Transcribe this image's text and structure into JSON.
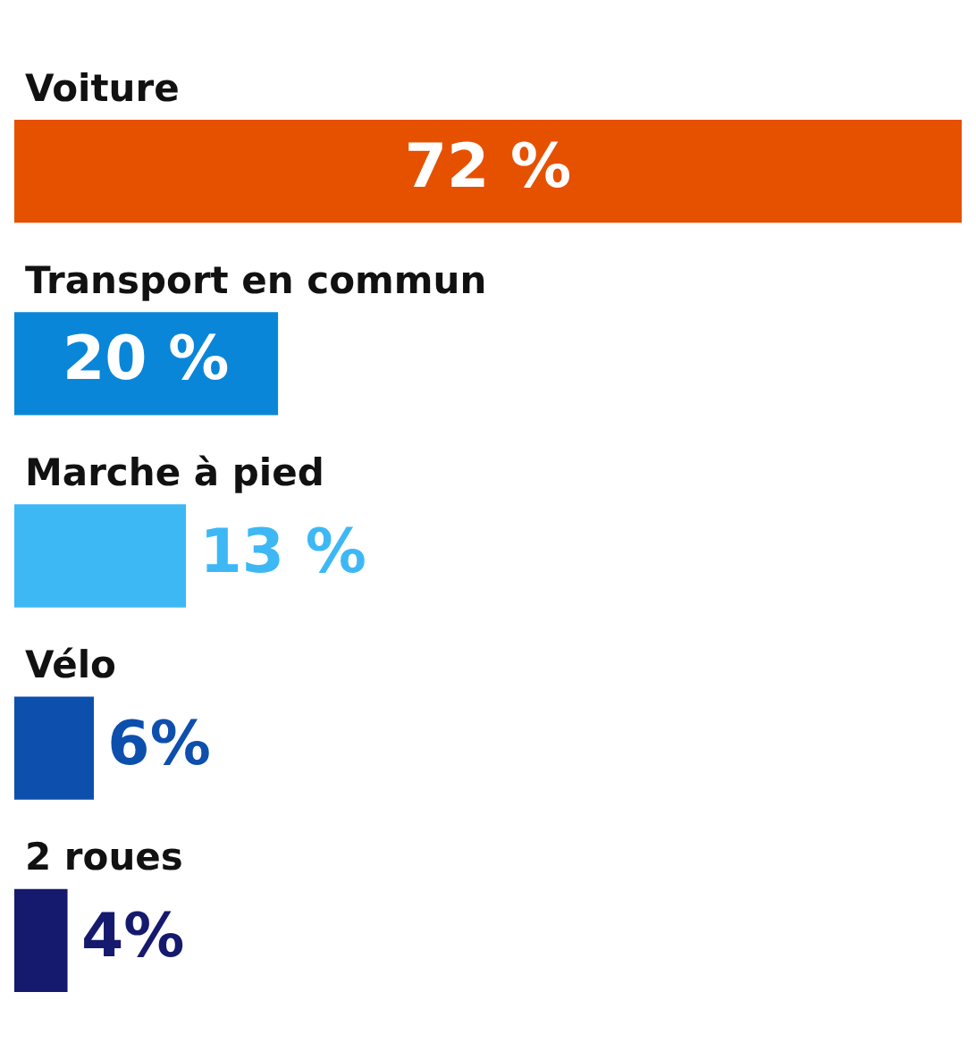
{
  "chart_data": {
    "type": "bar",
    "orientation": "horizontal",
    "categories": [
      "Voiture",
      "Transport en commun",
      "Marche à pied",
      "Vélo",
      "2 roues"
    ],
    "values": [
      72,
      20,
      13,
      6,
      4
    ],
    "colors": [
      "#e65100",
      "#0a86d8",
      "#3db8f5",
      "#0d4fad",
      "#151a6e"
    ],
    "value_labels": [
      "72 %",
      "20 %",
      "13 %",
      "6%",
      "4%"
    ],
    "xlim": [
      0,
      72
    ]
  }
}
